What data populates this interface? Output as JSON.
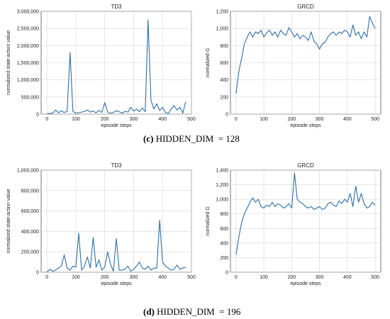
{
  "captions": {
    "c": {
      "tag": "(c)",
      "text": " HIDDEN_DIM  = 128"
    },
    "d": {
      "tag": "(d)",
      "text": " HIDDEN_DIM  = 196"
    }
  },
  "colors": {
    "line": "#2f6ea5",
    "grid": "#d6d6d6",
    "axis": "#555555"
  },
  "chart_data": [
    {
      "type": "line",
      "title": "TD3",
      "xlabel": "episode steps",
      "ylabel": "normalized  state-action  value",
      "xlim": [
        -20,
        500
      ],
      "ylim": [
        0,
        3000000
      ],
      "xticks": [
        0,
        100,
        200,
        300,
        400,
        500
      ],
      "yticks": [
        0,
        500000,
        1000000,
        1500000,
        2000000,
        2500000,
        3000000
      ],
      "ytick_labels": [
        "0",
        "500,000",
        "1,000,000",
        "1,500,000",
        "2,000,000",
        "2,500,000",
        "3,000,000"
      ],
      "grid": true,
      "series": [
        {
          "x": [
            0,
            10,
            20,
            30,
            40,
            50,
            60,
            70,
            80,
            90,
            100,
            110,
            120,
            130,
            140,
            150,
            160,
            170,
            180,
            190,
            200,
            210,
            220,
            230,
            240,
            250,
            260,
            270,
            280,
            290,
            300,
            310,
            320,
            330,
            340,
            350,
            360,
            370,
            380,
            390,
            400,
            410,
            420,
            430,
            440,
            450,
            460,
            470,
            480
          ],
          "y": [
            10000,
            20000,
            30000,
            120000,
            40000,
            100000,
            50000,
            80000,
            1800000,
            80000,
            30000,
            40000,
            60000,
            80000,
            120000,
            60000,
            90000,
            40000,
            110000,
            50000,
            340000,
            60000,
            30000,
            50000,
            100000,
            70000,
            30000,
            80000,
            60000,
            200000,
            90000,
            150000,
            70000,
            180000,
            70000,
            2750000,
            400000,
            150000,
            300000,
            100000,
            200000,
            50000,
            20000,
            150000,
            250000,
            120000,
            200000,
            30000,
            360000
          ]
        }
      ]
    },
    {
      "type": "line",
      "title": "GRCD",
      "xlabel": "episode steps",
      "ylabel": "normalized  G",
      "xlim": [
        -20,
        520
      ],
      "ylim": [
        0,
        1200
      ],
      "xticks": [
        0,
        100,
        200,
        300,
        400,
        500
      ],
      "yticks": [
        0,
        200,
        400,
        600,
        800,
        1000,
        1200
      ],
      "ytick_labels": [
        "0",
        "200",
        "400",
        "600",
        "800",
        "1,000",
        "1,200"
      ],
      "grid": true,
      "series": [
        {
          "x": [
            0,
            10,
            20,
            30,
            40,
            50,
            60,
            70,
            80,
            90,
            100,
            110,
            120,
            130,
            140,
            150,
            160,
            170,
            180,
            190,
            200,
            210,
            220,
            230,
            240,
            250,
            260,
            270,
            280,
            290,
            300,
            310,
            320,
            330,
            340,
            350,
            360,
            370,
            380,
            390,
            400,
            410,
            420,
            430,
            440,
            450,
            460,
            470,
            480,
            490,
            500
          ],
          "y": [
            240,
            500,
            650,
            820,
            900,
            960,
            900,
            960,
            940,
            980,
            900,
            950,
            980,
            920,
            960,
            900,
            980,
            940,
            920,
            1010,
            960,
            900,
            940,
            880,
            920,
            900,
            860,
            960,
            850,
            820,
            760,
            820,
            840,
            900,
            940,
            960,
            920,
            960,
            940,
            980,
            960,
            900,
            1040,
            920,
            960,
            880,
            960,
            900,
            1140,
            1060,
            1000
          ]
        }
      ]
    },
    {
      "type": "line",
      "title": "TD3",
      "xlabel": "episode steps",
      "ylabel": "normalized  state-action  value",
      "xlim": [
        -20,
        500
      ],
      "ylim": [
        0,
        1000000
      ],
      "xticks": [
        0,
        100,
        200,
        300,
        400,
        500
      ],
      "yticks": [
        0,
        200000,
        400000,
        600000,
        800000,
        1000000
      ],
      "ytick_labels": [
        "0",
        "200,000",
        "400,000",
        "600,000",
        "800,000",
        "1,000,000"
      ],
      "grid": true,
      "series": [
        {
          "x": [
            0,
            10,
            20,
            30,
            40,
            50,
            60,
            70,
            80,
            90,
            100,
            110,
            120,
            130,
            140,
            150,
            160,
            170,
            180,
            190,
            200,
            210,
            220,
            230,
            240,
            250,
            260,
            270,
            280,
            290,
            300,
            310,
            320,
            330,
            340,
            350,
            360,
            370,
            380,
            390,
            400,
            410,
            420,
            430,
            440,
            450,
            460,
            470,
            480
          ],
          "y": [
            0,
            30000,
            10000,
            20000,
            40000,
            60000,
            170000,
            40000,
            20000,
            60000,
            50000,
            380000,
            20000,
            60000,
            150000,
            40000,
            340000,
            50000,
            120000,
            20000,
            50000,
            200000,
            80000,
            10000,
            330000,
            20000,
            20000,
            30000,
            60000,
            10000,
            30000,
            60000,
            100000,
            40000,
            30000,
            60000,
            20000,
            40000,
            40000,
            510000,
            100000,
            60000,
            40000,
            20000,
            30000,
            70000,
            30000,
            40000,
            50000
          ]
        }
      ]
    },
    {
      "type": "line",
      "title": "GRCD",
      "xlabel": "episode steps",
      "ylabel": "normalized  G",
      "xlim": [
        -20,
        520
      ],
      "ylim": [
        0,
        1400
      ],
      "xticks": [
        0,
        100,
        200,
        300,
        400,
        500
      ],
      "yticks": [
        0,
        200,
        400,
        600,
        800,
        1000,
        1200,
        1400
      ],
      "ytick_labels": [
        "0",
        "200",
        "400",
        "600",
        "800",
        "1,000",
        "1,200",
        "1,400"
      ],
      "grid": true,
      "series": [
        {
          "x": [
            0,
            10,
            20,
            30,
            40,
            50,
            60,
            70,
            80,
            90,
            100,
            110,
            120,
            130,
            140,
            150,
            160,
            170,
            180,
            190,
            200,
            210,
            220,
            230,
            240,
            250,
            260,
            270,
            280,
            290,
            300,
            310,
            320,
            330,
            340,
            350,
            360,
            370,
            380,
            390,
            400,
            410,
            420,
            430,
            440,
            450,
            460,
            470,
            480,
            490,
            500
          ],
          "y": [
            240,
            480,
            680,
            800,
            880,
            960,
            1020,
            960,
            1000,
            900,
            880,
            920,
            900,
            960,
            900,
            940,
            920,
            880,
            900,
            940,
            880,
            1360,
            1000,
            960,
            940,
            900,
            880,
            900,
            860,
            880,
            900,
            860,
            880,
            940,
            960,
            920,
            900,
            980,
            940,
            1000,
            960,
            1080,
            900,
            1180,
            960,
            1080,
            940,
            880,
            900,
            960,
            920
          ]
        }
      ]
    }
  ]
}
